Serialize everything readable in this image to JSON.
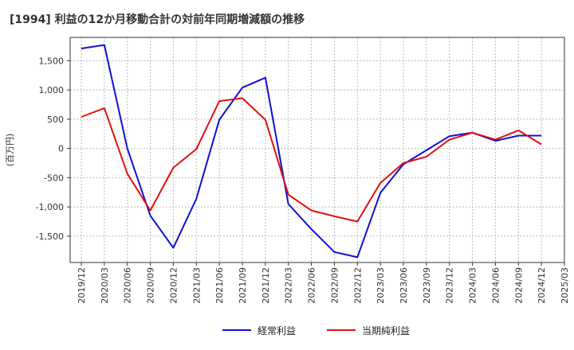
{
  "chart_data": {
    "type": "line",
    "title": "[1994]  利益の12か月移動合計の対前年同期増減額の推移",
    "ylabel": "(百万円)",
    "xlabel": "",
    "ylim": [
      -1950,
      1900
    ],
    "yticks": [
      1500,
      1000,
      500,
      0,
      -500,
      -1000,
      -1500
    ],
    "ytick_labels": [
      "1,500",
      "1,000",
      "500",
      "0",
      "-500",
      "-1,000",
      "-1,500"
    ],
    "categories": [
      "2019/12",
      "2020/03",
      "2020/06",
      "2020/09",
      "2020/12",
      "2021/03",
      "2021/06",
      "2021/09",
      "2021/12",
      "2022/03",
      "2022/06",
      "2022/09",
      "2022/12",
      "2023/03",
      "2023/06",
      "2023/09",
      "2023/12",
      "2024/03",
      "2024/06",
      "2024/09",
      "2024/12",
      "2025/03"
    ],
    "grid": true,
    "legend_position": "bottom",
    "series": [
      {
        "name": "経常利益",
        "color": "#1010d0",
        "values": [
          1710,
          1770,
          0,
          -1150,
          -1700,
          -860,
          490,
          1040,
          1210,
          -950,
          -1380,
          -1770,
          -1860,
          -760,
          -270,
          -30,
          210,
          270,
          130,
          220,
          220,
          null
        ]
      },
      {
        "name": "当期純利益",
        "color": "#e01010",
        "values": [
          540,
          690,
          -430,
          -1060,
          -330,
          -10,
          810,
          860,
          490,
          -790,
          -1060,
          -1160,
          -1250,
          -590,
          -250,
          -140,
          150,
          270,
          150,
          310,
          70,
          null
        ]
      }
    ]
  }
}
